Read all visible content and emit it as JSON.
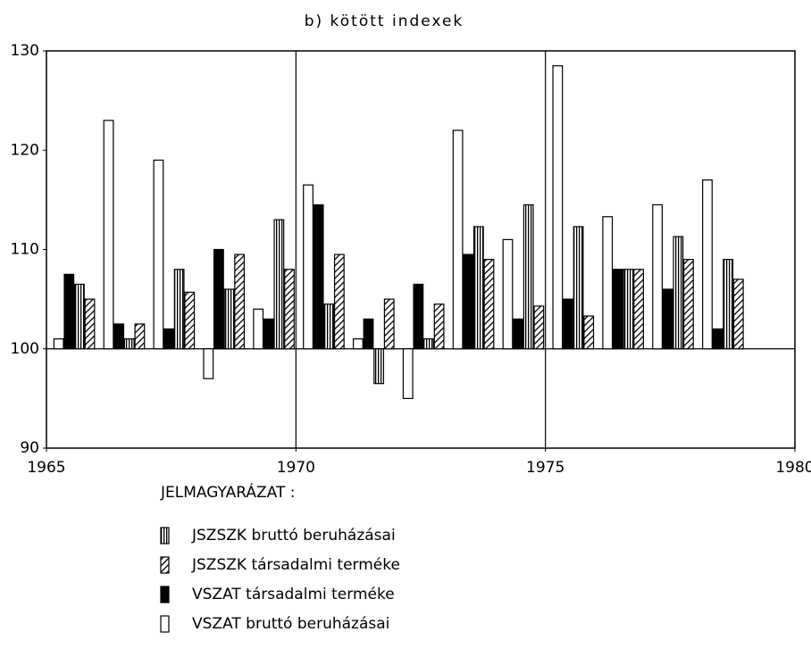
{
  "chart_data": {
    "type": "bar",
    "title": "b) kötött indexek",
    "x": [
      1966,
      1967,
      1968,
      1969,
      1970,
      1971,
      1972,
      1973,
      1974,
      1975,
      1976,
      1977,
      1978,
      1979
    ],
    "baseline": 100,
    "series": [
      {
        "name": "JSZSZK bruttó beruházásai",
        "color": "#000000",
        "pattern": "vertical",
        "values": [
          106.5,
          101,
          108,
          106,
          113,
          104.5,
          96.5,
          101,
          112.3,
          114.5,
          112.3,
          108,
          111.3,
          109
        ]
      },
      {
        "name": "JSZSZK társadalmi terméke",
        "color": "#000000",
        "pattern": "diagonal",
        "values": [
          105,
          102.5,
          105.7,
          109.5,
          108,
          109.5,
          105,
          104.5,
          109,
          104.3,
          103.3,
          108,
          109,
          107
        ]
      },
      {
        "name": "VSZAT társadalmi terméke",
        "color": "#000000",
        "pattern": "solid",
        "values": [
          107.5,
          102.5,
          102,
          110,
          103,
          114.5,
          103,
          106.5,
          109.5,
          103,
          105,
          108,
          106,
          102
        ]
      },
      {
        "name": "VSZAT bruttó beruházásai",
        "color": "#000000",
        "pattern": "none",
        "values": [
          101,
          123,
          119,
          97,
          104,
          116.5,
          101,
          95,
          122,
          111,
          128.5,
          113.3,
          114.5,
          117
        ]
      }
    ],
    "legend_title": "JELMAGYARÁZAT :",
    "xlim": [
      1965,
      1980
    ],
    "xticks": [
      1965,
      1970,
      1975,
      1980
    ],
    "xgrid": [
      1970,
      1975
    ],
    "ylim": [
      90,
      130
    ],
    "yticks": [
      90,
      100,
      110,
      120,
      130
    ]
  }
}
